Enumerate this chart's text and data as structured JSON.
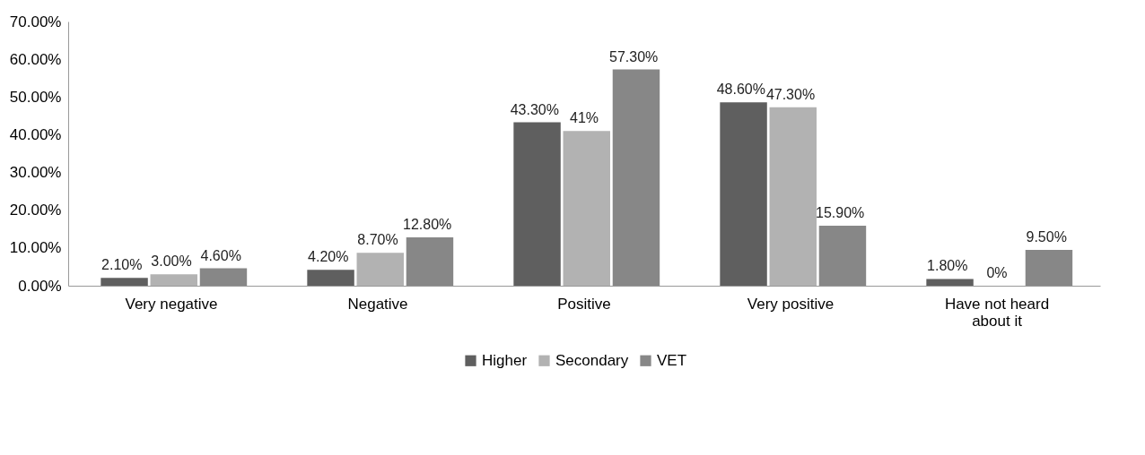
{
  "chart_data": {
    "type": "bar",
    "categories": [
      "Very negative",
      "Negative",
      "Positive",
      "Very positive",
      "Have not heard about it"
    ],
    "series": [
      {
        "name": "Higher",
        "color": "#5f5f5f",
        "values": [
          2.1,
          4.2,
          43.3,
          48.6,
          1.8
        ],
        "value_labels": [
          "2.10%",
          "4.20%",
          "43.30%",
          "48.60%",
          "1.80%"
        ]
      },
      {
        "name": "Secondary",
        "color": "#b2b2b2",
        "values": [
          3.0,
          8.7,
          41,
          47.3,
          0
        ],
        "value_labels": [
          "3.00%",
          "8.70%",
          "41%",
          "47.30%",
          "0%"
        ]
      },
      {
        "name": "VET",
        "color": "#878787",
        "values": [
          4.6,
          12.8,
          57.3,
          15.9,
          9.5
        ],
        "value_labels": [
          "4.60%",
          "12.80%",
          "57.30%",
          "15.90%",
          "9.50%"
        ]
      }
    ],
    "ylim": [
      0,
      70
    ],
    "yticks": [
      {
        "value": 0,
        "label": "0.00%"
      },
      {
        "value": 10,
        "label": "10.00%"
      },
      {
        "value": 20,
        "label": "20.00%"
      },
      {
        "value": 30,
        "label": "30.00%"
      },
      {
        "value": 40,
        "label": "40.00%"
      },
      {
        "value": 50,
        "label": "50.00%"
      },
      {
        "value": 60,
        "label": "60.00%"
      },
      {
        "value": 70,
        "label": "70.00%"
      }
    ],
    "grid": false,
    "legend": "bottom"
  }
}
